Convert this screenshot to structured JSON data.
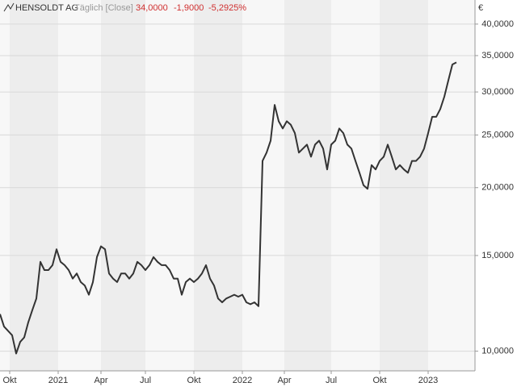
{
  "chart_data": {
    "type": "line",
    "title": "HENSOLDT AG",
    "subtitle": "Täglich [Close]",
    "last": "34,0000",
    "change": "-1,9000",
    "change_pct": "-5,2925%",
    "currency": "€",
    "log_scale": true,
    "grid": true,
    "series": [
      {
        "name": "HENSOLDT AG",
        "color": "#333333",
        "values": [
          11700,
          11100,
          10900,
          10700,
          9900,
          10400,
          10600,
          11300,
          11900,
          12500,
          14600,
          14100,
          14100,
          14400,
          15400,
          14600,
          14400,
          14100,
          13600,
          13900,
          13400,
          13200,
          12700,
          13400,
          14900,
          15600,
          15400,
          13900,
          13600,
          13400,
          13900,
          13900,
          13600,
          13900,
          14600,
          14400,
          14100,
          14400,
          14900,
          14600,
          14400,
          14400,
          14100,
          13600,
          13600,
          12700,
          13400,
          13600,
          13400,
          13600,
          13900,
          14400,
          13600,
          13200,
          12500,
          12300,
          12500,
          12600,
          12700,
          12600,
          12700,
          12300,
          12200,
          12300,
          12100,
          22400,
          23200,
          24400,
          28400,
          26500,
          25700,
          26500,
          26100,
          25200,
          23200,
          23600,
          24000,
          22800,
          24000,
          24400,
          23600,
          21600,
          24000,
          24400,
          25700,
          25200,
          24000,
          23600,
          22400,
          21300,
          20200,
          19900,
          22000,
          21600,
          22400,
          22800,
          24000,
          22800,
          21600,
          22000,
          21600,
          21300,
          22400,
          22400,
          22800,
          23600,
          25200,
          27000,
          27000,
          27900,
          29400,
          31500,
          33700,
          34000
        ]
      }
    ],
    "xlim": [
      0,
      117.6
    ],
    "xticks": [
      {
        "value": 2.4,
        "label": "Okt"
      },
      {
        "value": 14.4,
        "label": "2021"
      },
      {
        "value": 25,
        "label": "Apr"
      },
      {
        "value": 36,
        "label": "Jul"
      },
      {
        "value": 48,
        "label": "Okt"
      },
      {
        "value": 60,
        "label": "2022"
      },
      {
        "value": 70.4,
        "label": "Apr"
      },
      {
        "value": 82,
        "label": "Jul"
      },
      {
        "value": 94,
        "label": "Okt"
      },
      {
        "value": 106,
        "label": "2023"
      }
    ],
    "ylim": [
      9200,
      44300
    ],
    "yticks": [
      {
        "value": 10000,
        "label": "10,0000"
      },
      {
        "value": 15000,
        "label": "15,0000"
      },
      {
        "value": 20000,
        "label": "20,0000"
      },
      {
        "value": 25000,
        "label": "25,0000"
      },
      {
        "value": 30000,
        "label": "30,0000"
      },
      {
        "value": 35000,
        "label": "35,0000"
      },
      {
        "value": 40000,
        "label": "40,0000"
      }
    ]
  }
}
